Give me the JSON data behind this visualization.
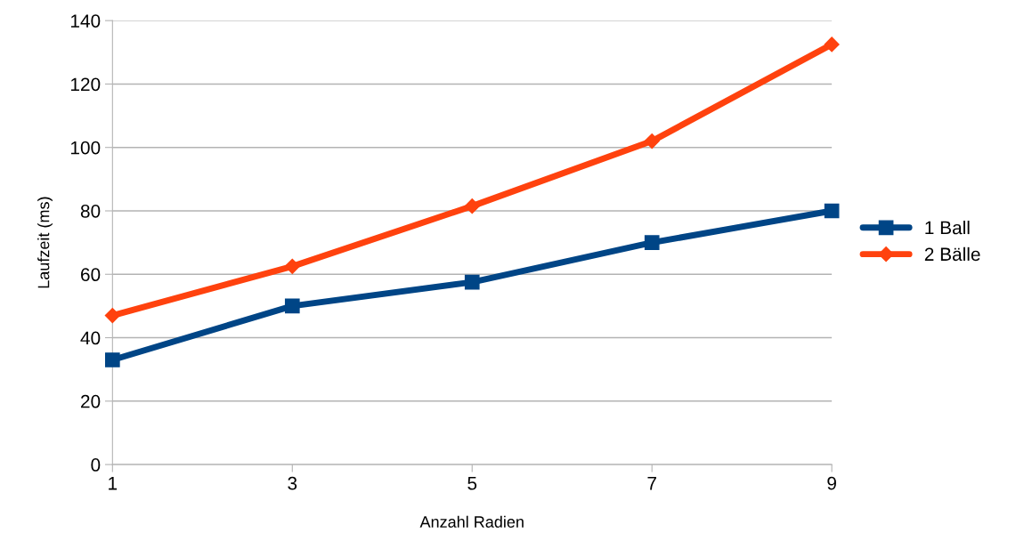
{
  "chart_data": {
    "type": "line",
    "xlabel": "Anzahl Radien",
    "ylabel": "Laufzeit (ms)",
    "categories": [
      "1",
      "3",
      "5",
      "7",
      "9"
    ],
    "series": [
      {
        "name": "1 Ball",
        "color": "#004586",
        "marker": "square",
        "values": [
          33,
          50,
          57.5,
          70,
          80
        ]
      },
      {
        "name": "2 Bälle",
        "color": "#ff420e",
        "marker": "diamond",
        "values": [
          47,
          62.5,
          81.5,
          102,
          132.5
        ]
      }
    ],
    "ylim": [
      0,
      140
    ],
    "yticks": [
      0,
      20,
      40,
      60,
      80,
      100,
      120,
      140
    ],
    "grid": "y",
    "legend": "right",
    "line_style": "solid"
  }
}
